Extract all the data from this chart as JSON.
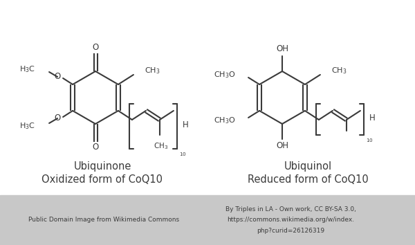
{
  "bg_color": "#ffffff",
  "footer_bg_color": "#c8c8c8",
  "line_color": "#3a3a3a",
  "text_color": "#3a3a3a",
  "fig_width": 6.0,
  "fig_height": 3.54,
  "dpi": 100,
  "title_left": "Ubiquinone",
  "subtitle_left": "Oxidized form of CoQ10",
  "title_right": "Ubiquinol",
  "subtitle_right": "Reduced form of CoQ10",
  "footer_left": "Public Domain Image from Wikimedia Commons",
  "footer_right_line1": "By Triples in LA - Own work, CC BY-SA 3.0,",
  "footer_right_line2": "https://commons.wikimedia.org/w/index.",
  "footer_right_line3": "php?curid=26126319",
  "title_fontsize": 10.5,
  "subtitle_fontsize": 10.5,
  "footer_fontsize": 6.5,
  "lw": 1.5
}
